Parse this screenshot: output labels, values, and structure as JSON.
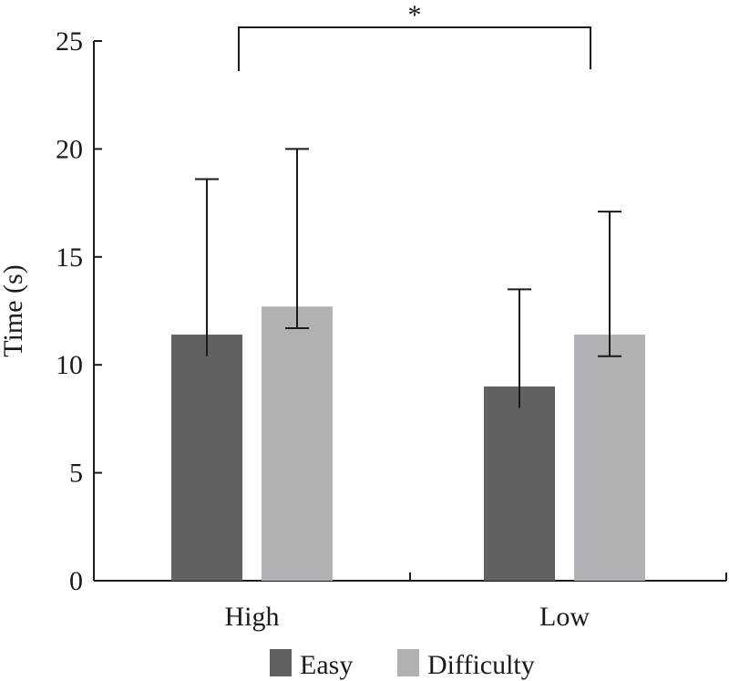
{
  "chart_data": {
    "type": "bar",
    "title": "",
    "xlabel": "",
    "ylabel": "Time (s)",
    "ylim": [
      0,
      25
    ],
    "yticks": [
      "0",
      "5",
      "10",
      "15",
      "20",
      "25"
    ],
    "categories": [
      "High",
      "Low"
    ],
    "series": [
      {
        "name": "Easy",
        "color": "#636063",
        "values": [
          11.4,
          9.0
        ],
        "errors": [
          7.2,
          4.5
        ]
      },
      {
        "name": "Difficulty",
        "color": "#b2b0b4",
        "values": [
          12.7,
          11.4
        ],
        "errors": [
          7.3,
          5.7
        ]
      }
    ],
    "legend": {
      "placement": "bottom",
      "items": [
        "Easy",
        "Difficulty"
      ]
    },
    "annotations": [
      {
        "text": "*",
        "type": "significance-bracket",
        "between": [
          "High",
          "Low"
        ]
      }
    ],
    "grid": false
  }
}
